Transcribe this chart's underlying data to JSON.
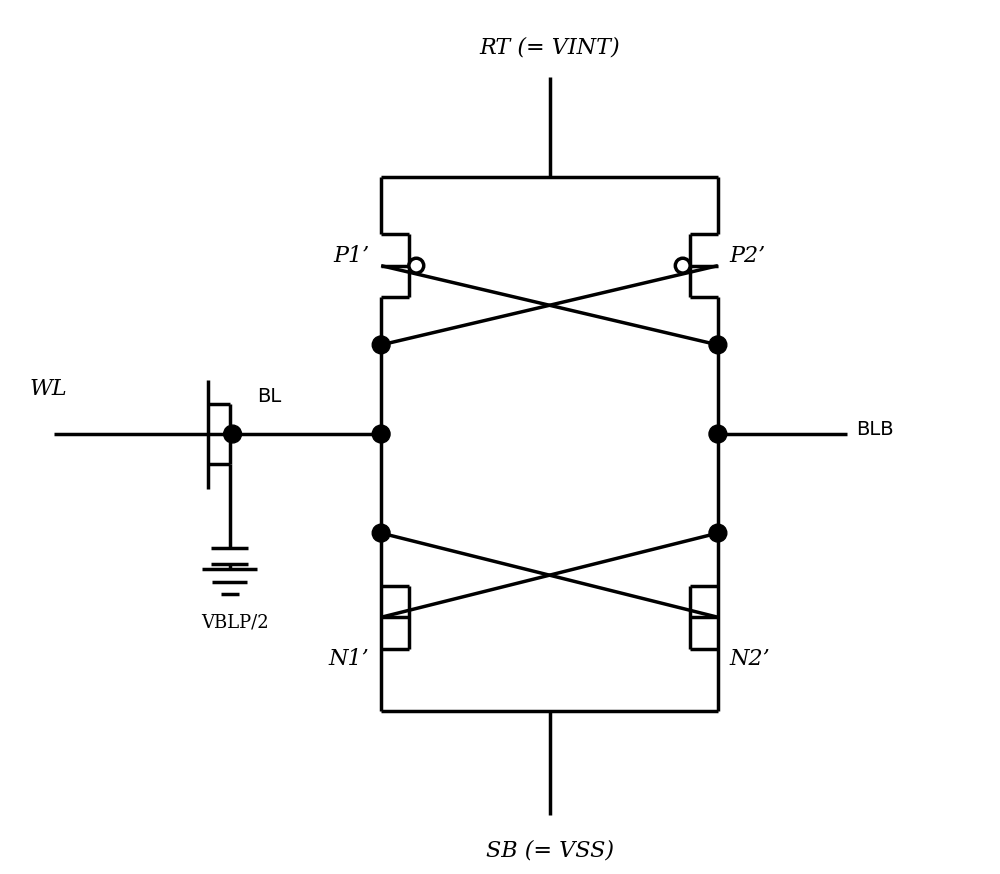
{
  "bg_color": "#ffffff",
  "line_color": "#000000",
  "lw": 2.5,
  "fig_width": 10.0,
  "fig_height": 8.74,
  "labels": {
    "RT": "RT (= VINT)",
    "SB": "SB (= VSS)",
    "WL": "WL",
    "BL": "BL",
    "BLB": "BLB",
    "VBLP2": "VBLP/2",
    "P1": "P1’",
    "P2": "P2’",
    "N1": "N1’",
    "N2": "N2’"
  }
}
